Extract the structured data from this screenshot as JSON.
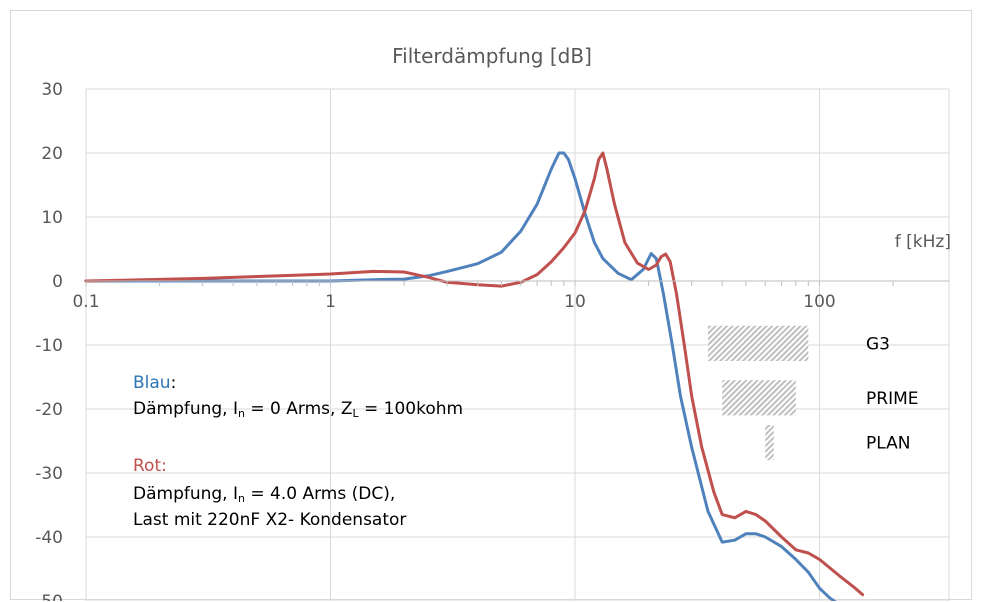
{
  "chart_data": {
    "type": "line",
    "title": "Filterdämpfung [dB]",
    "xlabel": "f [kHz]",
    "x_scale": "log",
    "xlim": [
      0.1,
      250
    ],
    "ylim": [
      -50,
      30
    ],
    "x_ticks": [
      "0.1",
      "1",
      "10",
      "100"
    ],
    "y_ticks": [
      "30",
      "20",
      "10",
      "0",
      "-10",
      "-20",
      "-30",
      "-40",
      "-50"
    ],
    "grid": true,
    "colors": {
      "blue": "#4f81bd",
      "red": "#c0504d",
      "band": "#bfbfbf"
    },
    "series": [
      {
        "color": "#4f81bd",
        "x": [
          0.1,
          0.5,
          1.0,
          1.5,
          2.0,
          2.5,
          3.0,
          4.0,
          5.0,
          6.0,
          7.0,
          8.0,
          8.6,
          9.0,
          9.4,
          10.0,
          11.0,
          12.0,
          13.0,
          15.0,
          17.0,
          19.0,
          20.5,
          21.5,
          23.0,
          25.0,
          27.0,
          30.0,
          35.0,
          40.0,
          45.0,
          50.0,
          55.0,
          60.0,
          70.0,
          80.0,
          90.0,
          100.0,
          110.0,
          120.0
        ],
        "y": [
          0,
          0,
          0,
          0.2,
          0.3,
          0.8,
          1.5,
          2.7,
          4.5,
          7.8,
          12.0,
          17.5,
          20.0,
          20.0,
          19.0,
          16.0,
          10.5,
          6.0,
          3.5,
          1.2,
          0.2,
          1.8,
          4.3,
          3.5,
          -2,
          -10,
          -18,
          -26,
          -36,
          -40.8,
          -40.5,
          -39.5,
          -39.5,
          -40.0,
          -41.5,
          -43.5,
          -45.5,
          -48.0,
          -49.5,
          -50.5
        ]
      },
      {
        "color": "#c0504d",
        "x": [
          0.1,
          0.3,
          0.6,
          1.0,
          1.5,
          2.0,
          2.5,
          3.0,
          4.0,
          5.0,
          6.0,
          7.0,
          8.0,
          9.0,
          10.0,
          11.0,
          12.0,
          12.5,
          13.0,
          13.5,
          14.5,
          16.0,
          18.0,
          20.0,
          21.5,
          22.5,
          23.5,
          24.5,
          26.0,
          28.0,
          30.0,
          33.0,
          37.0,
          40.0,
          45.0,
          50.0,
          55.0,
          60.0,
          70.0,
          80.0,
          90.0,
          100.0,
          120.0,
          140.0,
          150.0
        ],
        "y": [
          0,
          0.4,
          0.8,
          1.1,
          1.5,
          1.4,
          0.6,
          -0.2,
          -0.6,
          -0.8,
          -0.2,
          1.0,
          3.0,
          5.2,
          7.5,
          11.0,
          16.0,
          19.0,
          20.0,
          17.5,
          12.0,
          6.0,
          2.8,
          1.8,
          2.5,
          3.8,
          4.2,
          3.0,
          -2,
          -10,
          -18,
          -26,
          -33,
          -36.5,
          -37.0,
          -36.0,
          -36.5,
          -37.5,
          -40.0,
          -42.0,
          -42.5,
          -43.5,
          -46.0,
          -48.0,
          -49.0
        ]
      }
    ],
    "bands": [
      {
        "label": "G3",
        "x": [
          35,
          90
        ],
        "y": [
          -7,
          -12.5
        ]
      },
      {
        "label": "PRIME",
        "x": [
          40,
          80
        ],
        "y": [
          -15.5,
          -21
        ]
      },
      {
        "label": "PLAN",
        "x": [
          60,
          65
        ],
        "y": [
          -22.5,
          -28
        ]
      }
    ],
    "annotations": {
      "blau_label": "Blau",
      "blau_colon": ":",
      "blau_line_a": "Dämpfung, I",
      "blau_sub_n": "n",
      "blau_line_b": " = 0 Arms, Z",
      "blau_sub_l": "L",
      "blau_line_c": " = 100kohm",
      "rot_label": "Rot:",
      "rot_line1_a": "Dämpfung, I",
      "rot_sub_n": "n",
      "rot_line1_b": " = 4.0 Arms (DC),",
      "rot_line2": "Last mit 220nF X2- Kondensator"
    }
  }
}
